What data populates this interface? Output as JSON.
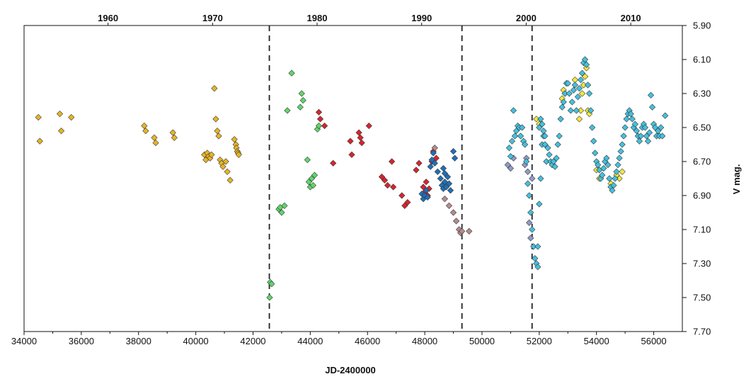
{
  "chart_data": {
    "type": "scatter",
    "xlabel": "JD-2400000",
    "ylabel": "V mag.",
    "xlim": [
      34000,
      57000
    ],
    "ylim": [
      5.9,
      7.7
    ],
    "y_inverted": true,
    "x_ticks": [
      34000,
      36000,
      38000,
      40000,
      42000,
      44000,
      46000,
      48000,
      50000,
      52000,
      54000,
      56000
    ],
    "y_ticks": [
      "5.90",
      "6.10",
      "6.30",
      "6.50",
      "6.70",
      "6.90",
      "7.10",
      "7.30",
      "7.50",
      "7.70"
    ],
    "top_axis": {
      "labels": [
        "1960",
        "1970",
        "1980",
        "1990",
        "2000",
        "2010"
      ],
      "jd": [
        36934,
        40587,
        44239,
        47892,
        51544,
        55197
      ]
    },
    "vertical_lines": [
      42570,
      49300,
      51750
    ],
    "grid": false,
    "legend": "none",
    "series": [
      {
        "color": "#e8b424",
        "points": [
          [
            34500,
            6.44
          ],
          [
            34550,
            6.58
          ],
          [
            35250,
            6.42
          ],
          [
            35300,
            6.52
          ],
          [
            35650,
            6.44
          ],
          [
            38200,
            6.49
          ],
          [
            38250,
            6.52
          ],
          [
            38550,
            6.56
          ],
          [
            38600,
            6.59
          ],
          [
            39200,
            6.53
          ],
          [
            39250,
            6.56
          ],
          [
            40300,
            6.66
          ],
          [
            40350,
            6.69
          ],
          [
            40400,
            6.65
          ],
          [
            40450,
            6.67
          ],
          [
            40500,
            6.68
          ],
          [
            40550,
            6.66
          ],
          [
            40650,
            6.27
          ],
          [
            40700,
            6.45
          ],
          [
            40750,
            6.52
          ],
          [
            40800,
            6.55
          ],
          [
            40850,
            6.69
          ],
          [
            40900,
            6.71
          ],
          [
            40950,
            6.73
          ],
          [
            41050,
            6.7
          ],
          [
            41100,
            6.76
          ],
          [
            41200,
            6.81
          ],
          [
            41350,
            6.57
          ],
          [
            41400,
            6.6
          ],
          [
            41420,
            6.62
          ],
          [
            41450,
            6.64
          ],
          [
            41480,
            6.65
          ],
          [
            41500,
            6.66
          ]
        ]
      },
      {
        "color": "#5fd66a",
        "points": [
          [
            42600,
            7.41
          ],
          [
            42650,
            7.42
          ],
          [
            42580,
            7.5
          ],
          [
            42900,
            6.98
          ],
          [
            42950,
            6.97
          ],
          [
            43000,
            7.0
          ],
          [
            43100,
            6.96
          ],
          [
            43200,
            6.4
          ],
          [
            43350,
            6.18
          ],
          [
            43650,
            6.38
          ],
          [
            43700,
            6.3
          ],
          [
            43750,
            6.34
          ],
          [
            43900,
            6.69
          ],
          [
            43950,
            6.82
          ],
          [
            44000,
            6.85
          ],
          [
            44050,
            6.8
          ],
          [
            44100,
            6.84
          ],
          [
            44150,
            6.78
          ],
          [
            44250,
            6.51
          ],
          [
            44300,
            6.49
          ]
        ]
      },
      {
        "color": "#d7242e",
        "points": [
          [
            44300,
            6.41
          ],
          [
            44350,
            6.45
          ],
          [
            44500,
            6.49
          ],
          [
            44800,
            6.71
          ],
          [
            45400,
            6.58
          ],
          [
            45450,
            6.66
          ],
          [
            45700,
            6.53
          ],
          [
            45750,
            6.56
          ],
          [
            45800,
            6.59
          ],
          [
            46050,
            6.49
          ],
          [
            46500,
            6.79
          ],
          [
            46600,
            6.81
          ],
          [
            46700,
            6.84
          ],
          [
            46850,
            6.7
          ],
          [
            46900,
            6.85
          ],
          [
            47200,
            6.9
          ],
          [
            47300,
            6.96
          ],
          [
            47400,
            6.94
          ],
          [
            47700,
            6.75
          ],
          [
            47800,
            6.71
          ],
          [
            47950,
            6.85
          ],
          [
            48000,
            6.88
          ],
          [
            48050,
            6.82
          ],
          [
            48100,
            6.9
          ],
          [
            48150,
            6.86
          ],
          [
            48250,
            6.7
          ],
          [
            48300,
            6.64
          ],
          [
            48400,
            6.68
          ]
        ]
      },
      {
        "color": "#1f6fb8",
        "points": [
          [
            47900,
            6.89
          ],
          [
            47950,
            6.92
          ],
          [
            48000,
            6.9
          ],
          [
            48050,
            6.87
          ],
          [
            48100,
            6.91
          ],
          [
            48200,
            6.73
          ],
          [
            48250,
            6.69
          ],
          [
            48300,
            6.65
          ],
          [
            48350,
            6.71
          ],
          [
            48450,
            6.76
          ],
          [
            48550,
            6.8
          ],
          [
            48600,
            6.84
          ],
          [
            48650,
            6.86
          ],
          [
            48700,
            6.82
          ],
          [
            48750,
            6.85
          ],
          [
            48800,
            6.79
          ],
          [
            48850,
            6.83
          ],
          [
            48900,
            6.87
          ],
          [
            48650,
            6.74
          ],
          [
            48700,
            6.77
          ],
          [
            49000,
            6.64
          ],
          [
            49050,
            6.68
          ]
        ]
      },
      {
        "color": "#b68c8c",
        "points": [
          [
            48350,
            6.62
          ],
          [
            48700,
            6.92
          ],
          [
            48850,
            6.96
          ],
          [
            49000,
            7.0
          ],
          [
            49100,
            7.05
          ],
          [
            49200,
            7.1
          ],
          [
            49250,
            7.12
          ],
          [
            49300,
            7.11
          ],
          [
            49550,
            7.11
          ]
        ]
      },
      {
        "color": "#8e9bc8",
        "points": [
          [
            50900,
            6.72
          ],
          [
            51000,
            6.74
          ],
          [
            51100,
            6.68
          ],
          [
            51500,
            6.72
          ],
          [
            51550,
            6.68
          ],
          [
            51600,
            6.76
          ],
          [
            51650,
            7.06
          ],
          [
            51700,
            7.15
          ],
          [
            51750,
            6.8
          ]
        ]
      },
      {
        "color": "#f3e93a",
        "points": [
          [
            51900,
            6.45
          ],
          [
            52000,
            6.48
          ],
          [
            52800,
            6.33
          ],
          [
            52850,
            6.28
          ],
          [
            52900,
            6.3
          ],
          [
            53250,
            6.22
          ],
          [
            53400,
            6.45
          ],
          [
            53450,
            6.4
          ],
          [
            53500,
            6.3
          ],
          [
            53550,
            6.25
          ],
          [
            53600,
            6.2
          ],
          [
            53650,
            6.15
          ],
          [
            53700,
            6.4
          ],
          [
            53750,
            6.42
          ],
          [
            54000,
            6.75
          ],
          [
            54100,
            6.8
          ],
          [
            54500,
            6.83
          ],
          [
            54700,
            6.78
          ],
          [
            54800,
            6.8
          ],
          [
            54900,
            6.76
          ]
        ]
      },
      {
        "color": "#45c0de",
        "points": [
          [
            50950,
            6.62
          ],
          [
            51000,
            6.67
          ],
          [
            51050,
            6.58
          ],
          [
            51100,
            6.4
          ],
          [
            51150,
            6.55
          ],
          [
            51200,
            6.52
          ],
          [
            51250,
            6.49
          ],
          [
            51300,
            6.5
          ],
          [
            51350,
            6.55
          ],
          [
            51400,
            6.5
          ],
          [
            51450,
            6.58
          ],
          [
            51500,
            6.6
          ],
          [
            51550,
            6.7
          ],
          [
            51600,
            6.83
          ],
          [
            51650,
            6.9
          ],
          [
            51700,
            7.0
          ],
          [
            51750,
            7.1
          ],
          [
            51800,
            7.2
          ],
          [
            51850,
            7.27
          ],
          [
            51900,
            7.3
          ],
          [
            51950,
            7.32
          ],
          [
            51950,
            7.2
          ],
          [
            52000,
            6.95
          ],
          [
            52050,
            6.8
          ],
          [
            52100,
            6.6
          ],
          [
            52150,
            6.55
          ],
          [
            52200,
            6.6
          ],
          [
            52250,
            6.7
          ],
          [
            52000,
            6.5
          ],
          [
            52050,
            6.45
          ],
          [
            52100,
            6.48
          ],
          [
            52150,
            6.52
          ],
          [
            52200,
            6.55
          ],
          [
            52300,
            6.62
          ],
          [
            52350,
            6.66
          ],
          [
            52400,
            6.7
          ],
          [
            52450,
            6.72
          ],
          [
            52500,
            6.7
          ],
          [
            52550,
            6.73
          ],
          [
            52600,
            6.68
          ],
          [
            52650,
            6.6
          ],
          [
            52700,
            6.55
          ],
          [
            52750,
            6.45
          ],
          [
            52800,
            6.38
          ],
          [
            52850,
            6.35
          ],
          [
            52900,
            6.3
          ],
          [
            52950,
            6.24
          ],
          [
            53000,
            6.24
          ],
          [
            53050,
            6.3
          ],
          [
            53100,
            6.4
          ],
          [
            53150,
            6.35
          ],
          [
            53200,
            6.28
          ],
          [
            53250,
            6.25
          ],
          [
            53300,
            6.4
          ],
          [
            53350,
            6.32
          ],
          [
            53400,
            6.27
          ],
          [
            53450,
            6.22
          ],
          [
            53500,
            6.18
          ],
          [
            53550,
            6.12
          ],
          [
            53600,
            6.1
          ],
          [
            53650,
            6.13
          ],
          [
            53700,
            6.25
          ],
          [
            53750,
            6.3
          ],
          [
            53800,
            6.4
          ],
          [
            53850,
            6.5
          ],
          [
            53900,
            6.58
          ],
          [
            53950,
            6.65
          ],
          [
            54000,
            6.7
          ],
          [
            54050,
            6.72
          ],
          [
            54100,
            6.75
          ],
          [
            54150,
            6.8
          ],
          [
            54200,
            6.78
          ],
          [
            54250,
            6.74
          ],
          [
            54300,
            6.7
          ],
          [
            54350,
            6.68
          ],
          [
            54400,
            6.72
          ],
          [
            54450,
            6.8
          ],
          [
            54500,
            6.85
          ],
          [
            54550,
            6.87
          ],
          [
            54600,
            6.84
          ],
          [
            54650,
            6.8
          ],
          [
            54700,
            6.76
          ],
          [
            54750,
            6.72
          ],
          [
            54800,
            6.68
          ],
          [
            54850,
            6.64
          ],
          [
            54900,
            6.6
          ],
          [
            54950,
            6.55
          ],
          [
            55000,
            6.5
          ],
          [
            55050,
            6.45
          ],
          [
            55100,
            6.42
          ],
          [
            55150,
            6.4
          ],
          [
            55200,
            6.42
          ],
          [
            55250,
            6.45
          ],
          [
            55300,
            6.5
          ],
          [
            55350,
            6.48
          ],
          [
            55400,
            6.52
          ],
          [
            55450,
            6.55
          ],
          [
            55500,
            6.58
          ],
          [
            55550,
            6.55
          ],
          [
            55600,
            6.5
          ],
          [
            55650,
            6.48
          ],
          [
            55700,
            6.5
          ],
          [
            55750,
            6.55
          ],
          [
            55800,
            6.58
          ],
          [
            55850,
            6.53
          ],
          [
            55900,
            6.31
          ],
          [
            55950,
            6.38
          ],
          [
            56000,
            6.48
          ],
          [
            56050,
            6.5
          ],
          [
            56100,
            6.55
          ],
          [
            56150,
            6.52
          ],
          [
            56200,
            6.55
          ],
          [
            56250,
            6.5
          ],
          [
            56300,
            6.55
          ],
          [
            56400,
            6.43
          ]
        ]
      }
    ]
  }
}
